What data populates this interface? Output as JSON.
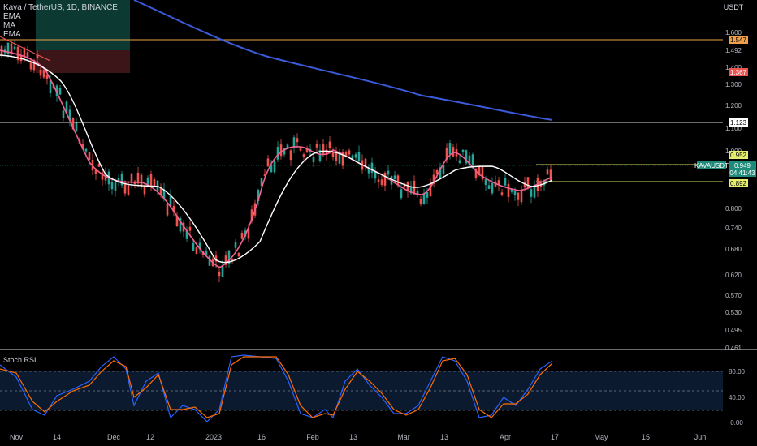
{
  "header": {
    "symbol_title": "Kava / TetherUS, 1D, BINANCE",
    "indicators": [
      "EMA",
      "MA",
      "EMA"
    ]
  },
  "colors": {
    "background": "#000000",
    "up_candle": "#26a69a",
    "down_candle": "#ef5350",
    "ma_long": "#3b5bdb",
    "ema_fast": "#f06292",
    "ma_mid": "#ffffff",
    "hline": "#e0e0e0",
    "orange_line": "#f0a04b",
    "yellow_line": "#d4e157",
    "rsi_k": "#2962ff",
    "rsi_d": "#ff6d00"
  },
  "chart_data": {
    "type": "candlestick",
    "title": "Kava / TetherUS, 1D, BINANCE",
    "currency": "USDT",
    "y_axis_ticks": [
      "1.600",
      "1.492",
      "1.400",
      "1.300",
      "1.200",
      "1.100",
      "1.000",
      "0.800",
      "0.740",
      "0.680",
      "0.620",
      "0.570",
      "0.530",
      "0.495",
      "0.461"
    ],
    "x_axis_ticks": [
      "Nov",
      "14",
      "Dec",
      "12",
      "2023",
      "16",
      "Feb",
      "13",
      "Mar",
      "13",
      "Apr",
      "17",
      "May",
      "15",
      "Jun"
    ],
    "price_labels": [
      {
        "text": "1.547",
        "style": "orange"
      },
      {
        "text": "1.367",
        "style": "red"
      },
      {
        "text": "1.123",
        "style": "white"
      },
      {
        "text": "0.952",
        "style": "yellow"
      },
      {
        "text": "KAVAUSDT",
        "style": "teal"
      },
      {
        "text": "0.949",
        "style": "teal"
      },
      {
        "text": "04:41:43",
        "style": "teal"
      },
      {
        "text": "0.892",
        "style": "yellow"
      }
    ],
    "horizontal_levels": [
      1.547,
      1.123,
      0.952,
      0.892
    ],
    "last_price": 0.949,
    "series": [
      {
        "name": "MA",
        "role": "long",
        "points": [
          [
            0.0,
            0.12
          ],
          [
            0.25,
            0.32
          ],
          [
            0.45,
            0.48
          ],
          [
            0.6,
            0.56
          ],
          [
            0.72,
            0.59
          ],
          [
            1.0,
            0.7
          ]
        ]
      }
    ],
    "stoch_rsi": {
      "title": "Stoch RSI",
      "ticks": [
        "80.00",
        "40.00",
        "0.00"
      ],
      "levels": [
        80,
        50,
        20
      ]
    }
  }
}
